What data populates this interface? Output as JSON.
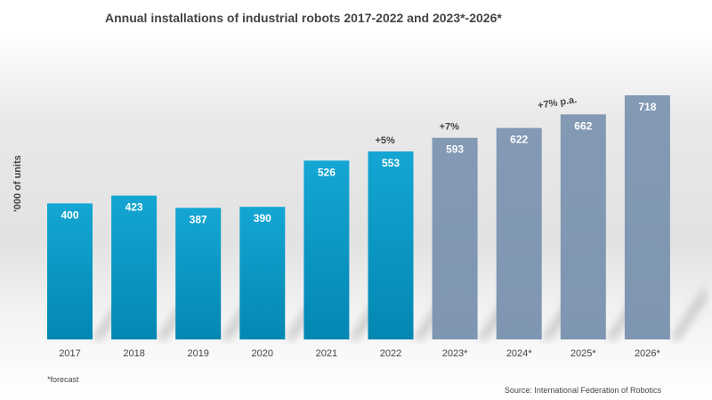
{
  "chart_data": {
    "type": "bar",
    "title": "Annual installations of industrial robots 2017-2022 and 2023*-2026*",
    "ylabel": "'000 of units",
    "xlabel": "",
    "categories": [
      "2017",
      "2018",
      "2019",
      "2020",
      "2021",
      "2022",
      "2023*",
      "2024*",
      "2025*",
      "2026*"
    ],
    "values": [
      400,
      423,
      387,
      390,
      526,
      553,
      593,
      622,
      662,
      718
    ],
    "forecast": [
      false,
      false,
      false,
      false,
      false,
      false,
      true,
      true,
      true,
      true
    ],
    "ylim": [
      0,
      718
    ],
    "grid": false,
    "data_labels": true,
    "colors": {
      "actual": "#0a93c0",
      "forecast": "#8299b5"
    },
    "annotations": [
      {
        "text": "+5%",
        "category": "2022"
      },
      {
        "text": "+7%",
        "category": "2023*"
      },
      {
        "text": "+7% p.a.",
        "category": "2025*"
      }
    ],
    "footnote": "*forecast",
    "source": "Source: International Federation of Robotics"
  }
}
